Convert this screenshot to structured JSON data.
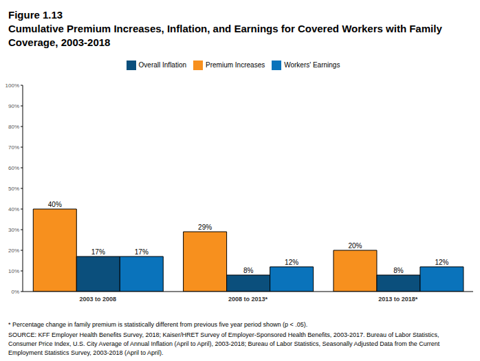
{
  "chart_data": {
    "type": "bar",
    "figure_label": "Figure 1.13",
    "title": "Cumulative Premium Increases, Inflation, and Earnings for Covered Workers with Family Coverage, 2003-2018",
    "categories": [
      "2003 to 2008",
      "2008 to 2013*",
      "2013 to 2018*"
    ],
    "series": [
      {
        "name": "Premium Increases",
        "color": "#f7901e",
        "values": [
          40,
          29,
          20
        ],
        "value_labels": [
          "40%",
          "29%",
          "20%"
        ]
      },
      {
        "name": "Overall Inflation",
        "color": "#0b4f7c",
        "values": [
          17,
          8,
          8
        ],
        "value_labels": [
          "17%",
          "8%",
          "8%"
        ]
      },
      {
        "name": "Workers' Earnings",
        "color": "#0a73bb",
        "values": [
          17,
          12,
          12
        ],
        "value_labels": [
          "17%",
          "12%",
          "12%"
        ]
      }
    ],
    "ylim": [
      0,
      100
    ],
    "yticks": [
      {
        "value": 0,
        "label": "0%"
      },
      {
        "value": 10,
        "label": "10%"
      },
      {
        "value": 20,
        "label": "20%"
      },
      {
        "value": 30,
        "label": "30%"
      },
      {
        "value": 40,
        "label": "40%"
      },
      {
        "value": 50,
        "label": "50%"
      },
      {
        "value": 60,
        "label": "60%"
      },
      {
        "value": 70,
        "label": "70%"
      },
      {
        "value": 80,
        "label": "80%"
      },
      {
        "value": 90,
        "label": "90%"
      },
      {
        "value": 100,
        "label": "100%"
      }
    ],
    "grid": false,
    "legend": "top",
    "data_labels": true,
    "notes": [
      "* Percentage change in family premium is statistically different from previous five year period shown (p < .05).",
      "SOURCE: KFF Employer Health Benefits Survey, 2018; Kaiser/HRET Survey of Employer-Sponsored Health Benefits, 2003-2017. Bureau of Labor Statistics, Consumer Price Index, U.S. City Average of Annual Inflation (April to April), 2003-2018; Bureau of Labor Statistics, Seasonally Adjusted Data from the Current Employment Statistics Survey, 2003-2018 (April to April)."
    ]
  }
}
